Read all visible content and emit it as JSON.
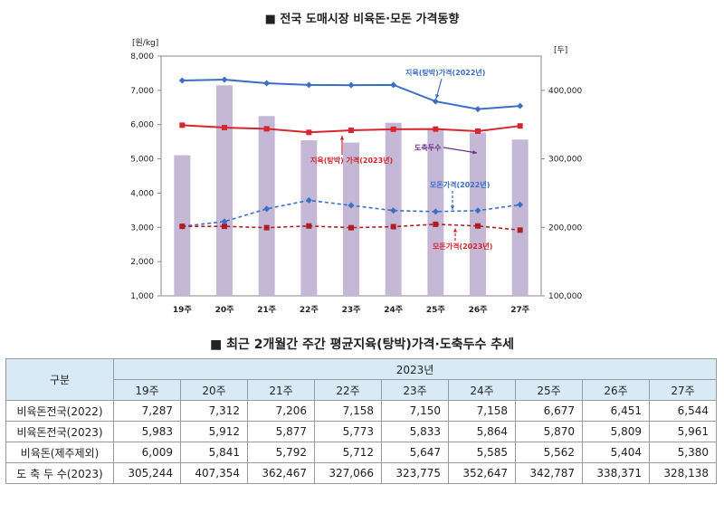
{
  "chart_title": "■ 전국 도매시장 비육돈·모돈 가격동향",
  "table_title": "■ 최근 2개월간 주간 평균지육(탕박)가격·도축두수 추세",
  "chart_data": {
    "type": "bar+line",
    "categories": [
      "19주",
      "20주",
      "21주",
      "22주",
      "23주",
      "24주",
      "25주",
      "26주",
      "27주"
    ],
    "left_axis": {
      "unit": "[원/kg]",
      "range": [
        1000,
        8000
      ],
      "ticks": [
        "1,000",
        "2,000",
        "3,000",
        "4,000",
        "5,000",
        "6,000",
        "7,000",
        "8,000"
      ]
    },
    "right_axis": {
      "unit": "[두]",
      "range": [
        100000,
        450000
      ],
      "ticks": [
        "100,000",
        "200,000",
        "300,000",
        "400,000"
      ]
    },
    "bars": {
      "name": "도축두수",
      "values": [
        305244,
        407354,
        362467,
        327066,
        323775,
        352647,
        342787,
        338371,
        328138
      ],
      "color": "#c5b8d6"
    },
    "series": [
      {
        "name": "지육(탕박)가격(2022년)",
        "values": [
          7287,
          7312,
          7206,
          7158,
          7150,
          7158,
          6677,
          6451,
          6544
        ],
        "color": "#3b6fc4",
        "style": "solid"
      },
      {
        "name": "지육(탕박) 가격(2023년)",
        "values": [
          5983,
          5912,
          5877,
          5773,
          5833,
          5864,
          5870,
          5809,
          5961
        ],
        "color": "#d7262e",
        "style": "solid"
      },
      {
        "name": "모돈가격(2022년)",
        "values": [
          3030,
          3170,
          3540,
          3790,
          3640,
          3490,
          3460,
          3490,
          3660
        ],
        "color": "#3b6fc4",
        "style": "dashed"
      },
      {
        "name": "모돈가격(2023년)",
        "values": [
          3030,
          3030,
          2990,
          3040,
          2990,
          3020,
          3090,
          3040,
          2920
        ],
        "color": "#b01e24",
        "style": "dashed"
      }
    ],
    "annotations": [
      "지육(탕박)가격(2022년)",
      "도축두수",
      "지육(탕박) 가격(2023년)",
      "모돈가격(2022년)",
      "모돈가격(2023년)"
    ],
    "grid": false
  },
  "table": {
    "corner": "구분",
    "year": "2023년",
    "weeks": [
      "19주",
      "20주",
      "21주",
      "22주",
      "23주",
      "24주",
      "25주",
      "26주",
      "27주"
    ],
    "rows": [
      {
        "label": "비육돈전국(2022)",
        "values": [
          "7,287",
          "7,312",
          "7,206",
          "7,158",
          "7,150",
          "7,158",
          "6,677",
          "6,451",
          "6,544"
        ]
      },
      {
        "label": "비육돈전국(2023)",
        "values": [
          "5,983",
          "5,912",
          "5,877",
          "5,773",
          "5,833",
          "5,864",
          "5,870",
          "5,809",
          "5,961"
        ]
      },
      {
        "label": "비육돈(제주제외)",
        "values": [
          "6,009",
          "5,841",
          "5,792",
          "5,712",
          "5,647",
          "5,585",
          "5,562",
          "5,404",
          "5,380"
        ]
      },
      {
        "label": "도 축 두 수(2023)",
        "values": [
          "305,244",
          "407,354",
          "362,467",
          "327,066",
          "323,775",
          "352,647",
          "342,787",
          "338,371",
          "328,138"
        ]
      }
    ]
  }
}
